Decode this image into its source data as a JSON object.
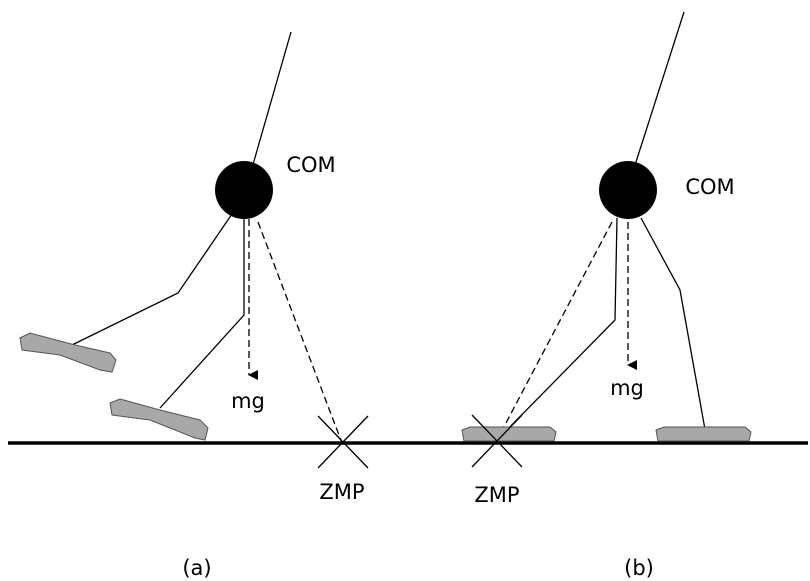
{
  "panels": [
    {
      "com": "COM",
      "force": "mg",
      "zmp": "ZMP",
      "caption": "(a)"
    },
    {
      "com": "COM",
      "force": "mg",
      "zmp": "ZMP",
      "caption": "(b)"
    }
  ]
}
